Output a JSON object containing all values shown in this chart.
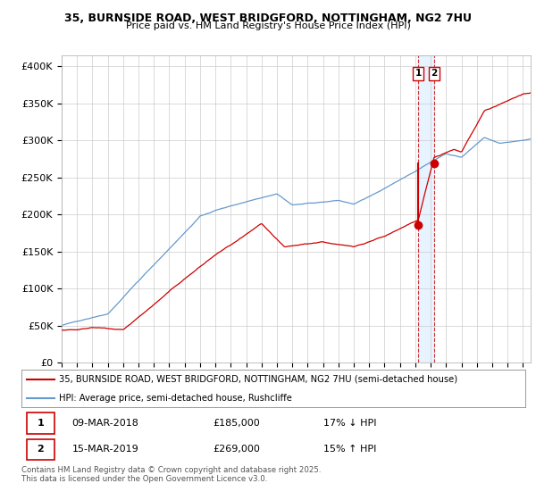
{
  "title": "35, BURNSIDE ROAD, WEST BRIDGFORD, NOTTINGHAM, NG2 7HU",
  "subtitle": "Price paid vs. HM Land Registry's House Price Index (HPI)",
  "ylabel_ticks": [
    "£0",
    "£50K",
    "£100K",
    "£150K",
    "£200K",
    "£250K",
    "£300K",
    "£350K",
    "£400K"
  ],
  "ytick_values": [
    0,
    50000,
    100000,
    150000,
    200000,
    250000,
    300000,
    350000,
    400000
  ],
  "ylim": [
    0,
    415000
  ],
  "xlim_start": 1995.0,
  "xlim_end": 2025.5,
  "hpi_color": "#6699cc",
  "price_color": "#cc0000",
  "sale1_date": 2018.19,
  "sale1_price": 185000,
  "sale2_date": 2019.21,
  "sale2_price": 269000,
  "vline_color": "#cc0000",
  "shade_color": "#ddeeff",
  "legend_label_price": "35, BURNSIDE ROAD, WEST BRIDGFORD, NOTTINGHAM, NG2 7HU (semi-detached house)",
  "legend_label_hpi": "HPI: Average price, semi-detached house, Rushcliffe",
  "footnote": "Contains HM Land Registry data © Crown copyright and database right 2025.\nThis data is licensed under the Open Government Licence v3.0.",
  "background_color": "#ffffff",
  "grid_color": "#cccccc"
}
